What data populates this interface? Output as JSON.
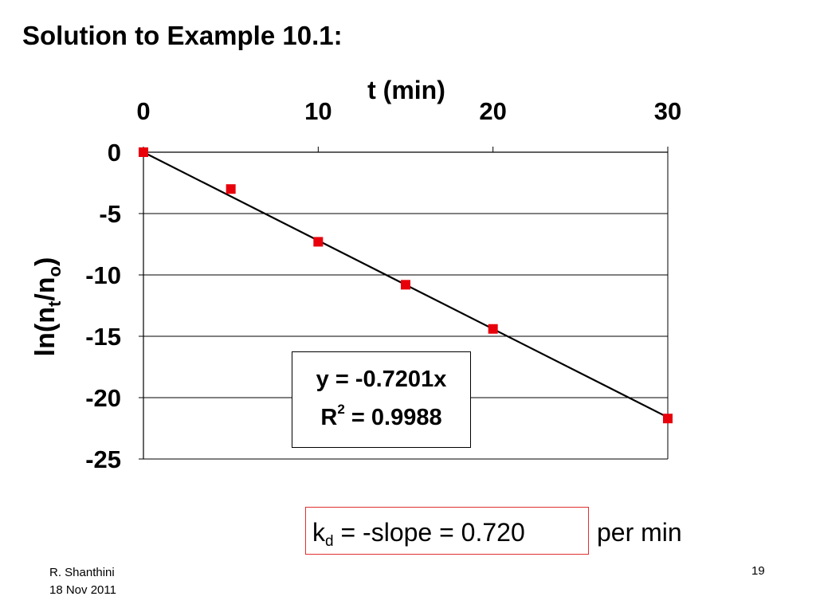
{
  "title": "Solution to Example 10.1:",
  "chart_data": {
    "type": "scatter",
    "xlabel": "t (min)",
    "ylabel_main": "ln(n",
    "ylabel_sub1": "t",
    "ylabel_mid": "/n",
    "ylabel_sub2": "o",
    "ylabel_close": ")",
    "x_axis_position": "top",
    "xlim": [
      0,
      30
    ],
    "ylim": [
      -25,
      0
    ],
    "x_ticks": [
      "0",
      "10",
      "20",
      "30"
    ],
    "y_ticks": [
      "0",
      "-5",
      "-10",
      "-15",
      "-20",
      "-25"
    ],
    "horizontal_grid": true,
    "series": [
      {
        "points": [
          {
            "x": 0,
            "y": 0
          },
          {
            "x": 5,
            "y": -3.0
          },
          {
            "x": 10,
            "y": -7.3
          },
          {
            "x": 15,
            "y": -10.8
          },
          {
            "x": 20,
            "y": -14.4
          },
          {
            "x": 30,
            "y": -21.7
          }
        ],
        "marker": "square",
        "color": "#e8000b"
      }
    ],
    "trendline": {
      "slope": -0.7201,
      "intercept": 0,
      "color": "#000000"
    },
    "equation_line1": "y = -0.7201x",
    "equation_r": "R",
    "equation_r_sup": "2",
    "equation_r_value": " = 0.9988"
  },
  "result": {
    "k": "k",
    "k_sub": "d",
    "text": " = -slope = 0.720",
    "unit": "per min",
    "border_color": "#e0302f"
  },
  "footer": {
    "author": "R. Shanthini",
    "date": "18 Nov 2011",
    "page": "19"
  }
}
